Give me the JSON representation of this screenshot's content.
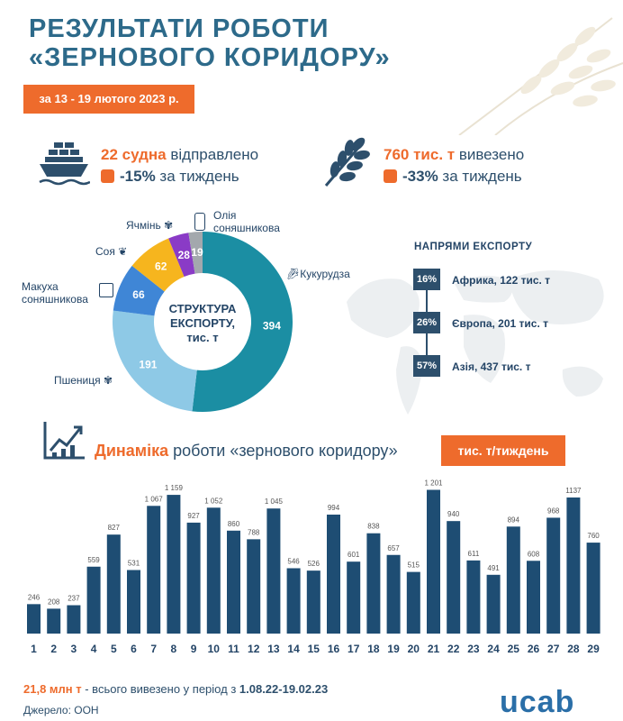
{
  "header": {
    "title_line1": "РЕЗУЛЬТАТИ РОБОТИ",
    "title_line2": "«ЗЕРНОВОГО КОРИДОРУ»",
    "period": "за 13 - 19 лютого 2023 р."
  },
  "stats": {
    "ships": {
      "value": "22 судна",
      "text": " відправлено",
      "change": "-15%",
      "change_text": " за тиждень",
      "icon": "ship-icon"
    },
    "export": {
      "value": "760 тис. т",
      "text": " вивезено",
      "change": "-33%",
      "change_text": " за тиждень",
      "icon": "wheat-icon"
    }
  },
  "structure": {
    "center_line1": "СТРУКТУРА",
    "center_line2": "ЕКСПОРТУ,",
    "center_line3": "тис. т",
    "type": "pie",
    "slices": [
      {
        "name": "Кукурудза",
        "value": 394,
        "color": "#1b8ea3"
      },
      {
        "name": "Пшениця",
        "value": 191,
        "color": "#8ec9e6"
      },
      {
        "name": "Макуха соняшникова",
        "value": 66,
        "color": "#3f86d6"
      },
      {
        "name": "Соя",
        "value": 62,
        "color": "#f6b51e"
      },
      {
        "name": "Ячмінь",
        "value": 28,
        "color": "#8a3bc6"
      },
      {
        "name": "Олія соняшникова",
        "value": 19,
        "color": "#a3a8ad"
      }
    ],
    "labels": {
      "corn": "Кукурудза",
      "wheat": "Пшениця",
      "meal_line1": "Макуха",
      "meal_line2": "соняшникова",
      "soy": "Соя",
      "barley": "Ячмінь",
      "oil_line1": "Олія",
      "oil_line2": "соняшникова"
    }
  },
  "directions": {
    "title": "НАПРЯМИ ЕКСПОРТУ",
    "items": [
      {
        "pct": "16%",
        "label": "Африка, 122 тис. т"
      },
      {
        "pct": "26%",
        "label": "Європа, 201 тис. т"
      },
      {
        "pct": "57%",
        "label": "Азія, 437 тис. т"
      }
    ]
  },
  "dynamics": {
    "title_accent": "Динаміка",
    "title_rest": " роботи «зернового коридору»",
    "unit": "тис. т/тиждень"
  },
  "chart_data": {
    "type": "bar",
    "categories": [
      "1",
      "2",
      "3",
      "4",
      "5",
      "6",
      "7",
      "8",
      "9",
      "10",
      "11",
      "12",
      "13",
      "14",
      "15",
      "16",
      "17",
      "18",
      "19",
      "20",
      "21",
      "22",
      "23",
      "24",
      "25",
      "26",
      "27",
      "28",
      "29"
    ],
    "values": [
      246,
      208,
      237,
      559,
      827,
      531,
      1067,
      1159,
      927,
      1052,
      860,
      788,
      1045,
      546,
      526,
      994,
      601,
      838,
      657,
      515,
      1201,
      940,
      611,
      491,
      894,
      608,
      968,
      1137,
      760
    ],
    "value_labels": [
      "246",
      "208",
      "237",
      "559",
      "827",
      "531",
      "1 067",
      "1 159",
      "927",
      "1 052",
      "860",
      "788",
      "1 045",
      "546",
      "526",
      "994",
      "601",
      "838",
      "657",
      "515",
      "1 201",
      "940",
      "611",
      "491",
      "894",
      "608",
      "968",
      "1137",
      "760"
    ],
    "ylim": [
      0,
      1250
    ],
    "color": "#1e4d73"
  },
  "footer": {
    "total_value": "21,8 млн т",
    "total_text": " - всього вивезено у період з ",
    "total_period": "1.08.22-19.02.23",
    "source": "Джерело: ООН",
    "logo": "ucab"
  }
}
